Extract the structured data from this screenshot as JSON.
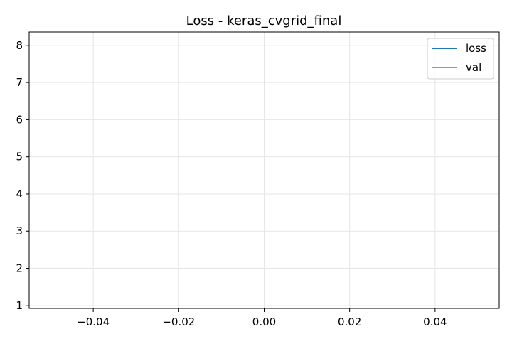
{
  "chart_data": {
    "type": "line",
    "title": "Loss - keras_cvgrid_final",
    "xlabel": "",
    "ylabel": "",
    "xlim": [
      -0.055,
      0.055
    ],
    "ylim": [
      0.92,
      8.36
    ],
    "x_ticks": [
      -0.04,
      -0.02,
      0.0,
      0.02,
      0.04
    ],
    "x_tick_labels": [
      "−0.04",
      "−0.02",
      "0.00",
      "0.02",
      "0.04"
    ],
    "y_ticks": [
      1,
      2,
      3,
      4,
      5,
      6,
      7,
      8
    ],
    "y_tick_labels": [
      "1",
      "2",
      "3",
      "4",
      "5",
      "6",
      "7",
      "8"
    ],
    "grid": true,
    "legend_position": "top-right",
    "series": [
      {
        "name": "loss",
        "color": "#1f77b4",
        "x": [],
        "y": []
      },
      {
        "name": "val",
        "color": "#ff7f0e",
        "x": [],
        "y": []
      }
    ]
  }
}
